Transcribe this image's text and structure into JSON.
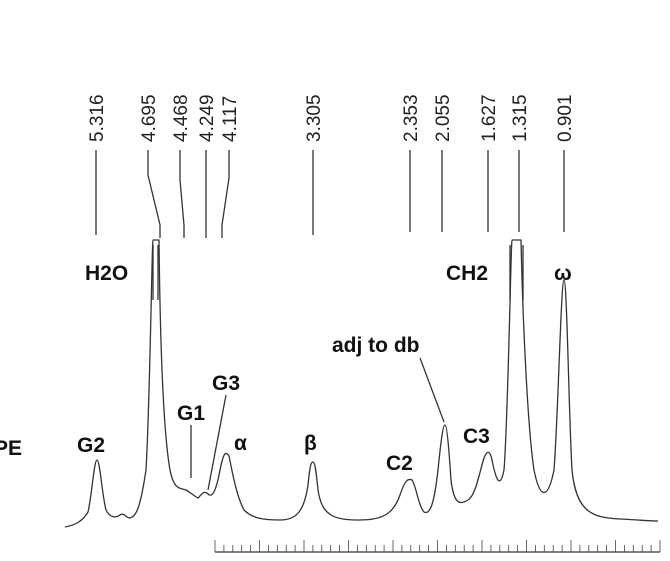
{
  "shifts": [
    "5.316",
    "4.695",
    "4.468",
    "4.249",
    "4.117",
    "3.305",
    "2.353",
    "2.055",
    "1.627",
    "1.315",
    "0.901"
  ],
  "peak_labels": {
    "h2o": "H2O",
    "g2": "G2",
    "g1": "G1",
    "g3": "G3",
    "alpha": "α",
    "beta": "β",
    "c2": "C2",
    "adj": "adj to db",
    "c3": "C3",
    "ch2": "CH2",
    "omega": "ω"
  },
  "side_text": "PE"
}
